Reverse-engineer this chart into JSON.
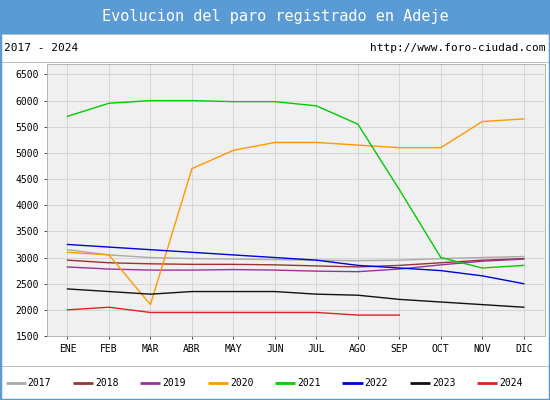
{
  "title": "Evolucion del paro registrado en Adeje",
  "subtitle_left": "2017 - 2024",
  "subtitle_right": "http://www.foro-ciudad.com",
  "title_bg_color": "#5b9bd5",
  "title_text_color": "white",
  "months": [
    "ENE",
    "FEB",
    "MAR",
    "ABR",
    "MAY",
    "JUN",
    "JUL",
    "AGO",
    "SEP",
    "OCT",
    "NOV",
    "DIC"
  ],
  "ylim": [
    1500,
    6700
  ],
  "yticks": [
    1500,
    2000,
    2500,
    3000,
    3500,
    4000,
    4500,
    5000,
    5500,
    6000,
    6500
  ],
  "series": {
    "2017": {
      "color": "#aaaaaa",
      "data": [
        3150,
        3050,
        3000,
        2980,
        2970,
        2960,
        2950,
        2940,
        2950,
        2980,
        3000,
        3020
      ]
    },
    "2018": {
      "color": "#993333",
      "data": [
        2950,
        2900,
        2880,
        2870,
        2870,
        2860,
        2840,
        2820,
        2850,
        2900,
        2950,
        2980
      ]
    },
    "2019": {
      "color": "#993399",
      "data": [
        2820,
        2780,
        2760,
        2760,
        2770,
        2760,
        2740,
        2730,
        2780,
        2860,
        2930,
        2970
      ]
    },
    "2020": {
      "color": "#ff9900",
      "data": [
        3100,
        3050,
        2100,
        4700,
        5050,
        5200,
        5200,
        5150,
        5100,
        5100,
        5600,
        5650
      ]
    },
    "2021": {
      "color": "#00cc00",
      "data": [
        5700,
        5950,
        6000,
        6000,
        5980,
        5980,
        5900,
        5550,
        4300,
        3000,
        2800,
        2850
      ]
    },
    "2022": {
      "color": "#0000dd",
      "data": [
        3250,
        3200,
        3150,
        3100,
        3050,
        3000,
        2950,
        2850,
        2800,
        2750,
        2650,
        2500
      ]
    },
    "2023": {
      "color": "#111111",
      "data": [
        2400,
        2350,
        2300,
        2350,
        2350,
        2350,
        2300,
        2280,
        2200,
        2150,
        2100,
        2050
      ]
    },
    "2024": {
      "color": "#dd2222",
      "data": [
        2000,
        2050,
        1950,
        1950,
        1950,
        1950,
        1950,
        1900,
        1900,
        null,
        null,
        null
      ]
    }
  },
  "plot_bg": "#f0f0f0",
  "grid_color": "#cccccc",
  "border_color": "#5b9bd5"
}
